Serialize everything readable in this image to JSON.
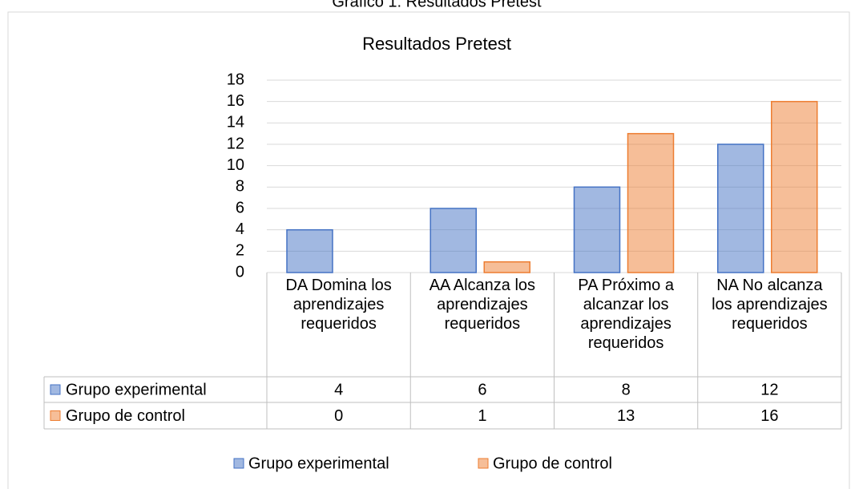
{
  "caption": "Gráfico 1: Resultados Pretest",
  "chart_data": {
    "type": "bar",
    "title": "Resultados Pretest",
    "categories": [
      "DA Domina los aprendizajes requeridos",
      "AA Alcanza los aprendizajes requeridos",
      "PA Próximo a alcanzar los aprendizajes requeridos",
      "NA No alcanza los aprendizajes requeridos"
    ],
    "series": [
      {
        "name": "Grupo experimental",
        "color": "#4472c4",
        "values": [
          4,
          6,
          8,
          12
        ]
      },
      {
        "name": "Grupo de control",
        "color": "#ed7d31",
        "values": [
          0,
          1,
          13,
          16
        ]
      }
    ],
    "ylim": [
      0,
      18
    ],
    "yticks": [
      0,
      2,
      4,
      6,
      8,
      10,
      12,
      14,
      16,
      18
    ],
    "grid": true,
    "legend": "bottom",
    "data_table": true
  }
}
